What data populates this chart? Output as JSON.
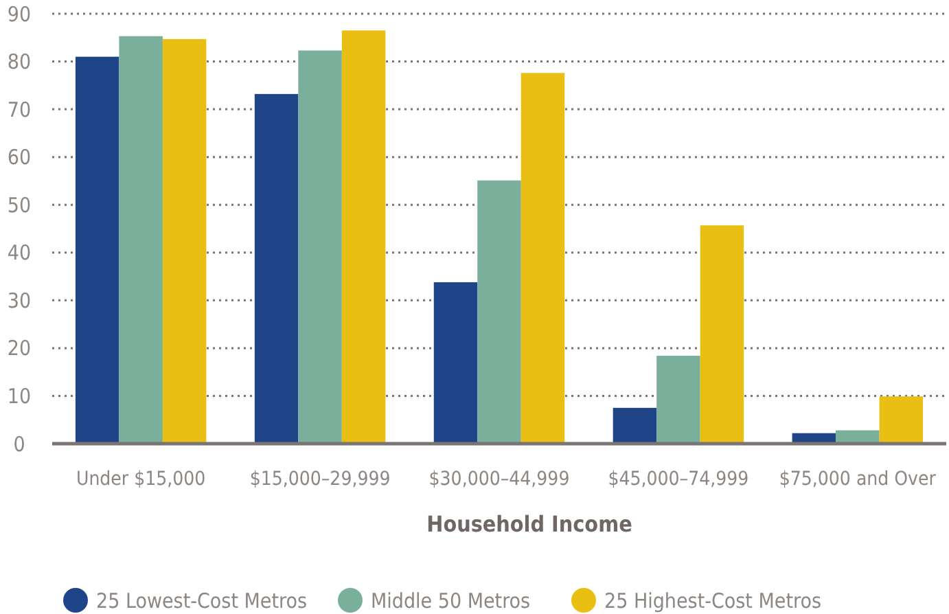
{
  "chart_data": {
    "type": "bar",
    "xlabel": "Household Income",
    "categories": [
      "Under $15,000",
      "$15,000–29,999",
      "$30,000–44,999",
      "$45,000–74,999",
      "$75,000 and Over"
    ],
    "series": [
      {
        "name": "25 Lowest-Cost Metros",
        "color": "#1f4488",
        "values": [
          81,
          73.2,
          33.8,
          7.5,
          2.2
        ]
      },
      {
        "name": "Middle 50 Metros",
        "color": "#7aaf9c",
        "values": [
          85.3,
          82.3,
          55.1,
          18.4,
          2.8
        ]
      },
      {
        "name": "25 Highest-Cost Metros",
        "color": "#e8bf12",
        "values": [
          84.7,
          86.5,
          77.6,
          45.7,
          9.9
        ]
      }
    ],
    "ylim": [
      0,
      90
    ],
    "yticks": [
      0,
      10,
      20,
      30,
      40,
      50,
      60,
      70,
      80,
      90
    ],
    "grid": "y",
    "legend": "bottom"
  }
}
